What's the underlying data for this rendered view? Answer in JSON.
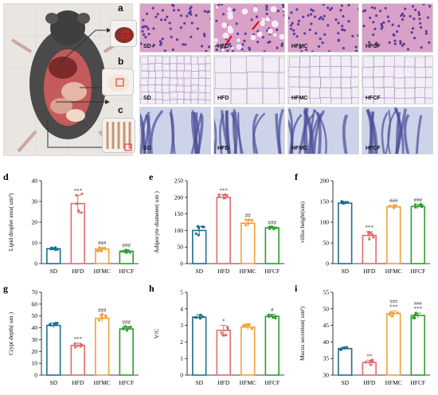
{
  "photo": {
    "panel_labels": [
      "a",
      "b",
      "c"
    ]
  },
  "histology": {
    "rows": [
      {
        "panel": "a",
        "tissue": "liver",
        "groups": [
          "SD",
          "HFD",
          "HFMC",
          "HFCF"
        ]
      },
      {
        "panel": "b",
        "tissue": "adipose",
        "groups": [
          "SD",
          "HFD",
          "HFMC",
          "HFCF"
        ]
      },
      {
        "panel": "c",
        "tissue": "intestine",
        "groups": [
          "SD",
          "HFD",
          "HFMC",
          "HFCF"
        ]
      }
    ]
  },
  "colors": {
    "SD": "#1f6f8b",
    "HFD": "#e06c6c",
    "HFMC": "#f0a03c",
    "HFCF": "#2ca02c"
  },
  "chart_data": [
    {
      "panel": "d",
      "type": "bar",
      "categories": [
        "SD",
        "HFD",
        "HFMC",
        "HFCF"
      ],
      "values": [
        7.2,
        29.0,
        7.0,
        6.0
      ],
      "errors": [
        0.5,
        4.0,
        0.8,
        0.7
      ],
      "ylabel": "Lipid droplet area( um²)",
      "ylim": [
        0,
        40
      ],
      "yticks": [
        0,
        10,
        20,
        30,
        40
      ],
      "sig_top": [
        "",
        "***",
        "###",
        "###"
      ]
    },
    {
      "panel": "e",
      "type": "bar",
      "categories": [
        "SD",
        "HFD",
        "HFMC",
        "HFCF"
      ],
      "values": [
        100,
        200,
        122,
        108
      ],
      "errors": [
        12,
        8,
        10,
        3
      ],
      "ylabel": "Adipocyte diameter( um )",
      "ylim": [
        0,
        250
      ],
      "yticks": [
        0,
        50,
        100,
        150,
        200,
        250
      ],
      "sig_top": [
        "",
        "***",
        "##",
        "###"
      ]
    },
    {
      "panel": "f",
      "type": "bar",
      "categories": [
        "SD",
        "HFD",
        "HFMC",
        "HFCF"
      ],
      "values": [
        146,
        68,
        137,
        138
      ],
      "errors": [
        4,
        9,
        4,
        5
      ],
      "ylabel": "villus height(um)",
      "ylim": [
        0,
        200
      ],
      "yticks": [
        0,
        50,
        100,
        150,
        200
      ],
      "sig_top": [
        "",
        "***",
        "###",
        "###"
      ]
    },
    {
      "panel": "g",
      "type": "bar",
      "categories": [
        "SD",
        "HFD",
        "HFMC",
        "HFCF"
      ],
      "values": [
        42,
        25,
        48,
        39
      ],
      "errors": [
        2,
        2,
        3,
        2
      ],
      "ylabel": "Crypt depth( um )",
      "ylim": [
        0,
        70
      ],
      "yticks": [
        0,
        10,
        20,
        30,
        40,
        50,
        60,
        70
      ],
      "sig_top": [
        "",
        "***",
        "###",
        "###"
      ]
    },
    {
      "panel": "h",
      "type": "bar",
      "categories": [
        "SD",
        "HFD",
        "HFMC",
        "HFCF"
      ],
      "values": [
        3.5,
        2.7,
        2.9,
        3.55
      ],
      "errors": [
        0.15,
        0.3,
        0.2,
        0.12
      ],
      "ylabel": "V/C",
      "ylim": [
        0,
        5
      ],
      "yticks": [
        0,
        1,
        2,
        3,
        4,
        5
      ],
      "sig_top": [
        "",
        "*",
        "",
        "#"
      ]
    },
    {
      "panel": "i",
      "type": "bar",
      "categories": [
        "SD",
        "HFD",
        "HFMC",
        "HFCF"
      ],
      "values": [
        38,
        33.8,
        48.6,
        48
      ],
      "errors": [
        0.4,
        0.7,
        0.8,
        0.7
      ],
      "ylabel": "Mucus secretion( um²)",
      "ylim": [
        30,
        55
      ],
      "yticks": [
        30,
        35,
        40,
        45,
        50,
        55
      ],
      "sig_top": [
        "",
        "**",
        "***",
        "***"
      ],
      "sig_top2": [
        "",
        "",
        "###",
        "###"
      ]
    }
  ]
}
